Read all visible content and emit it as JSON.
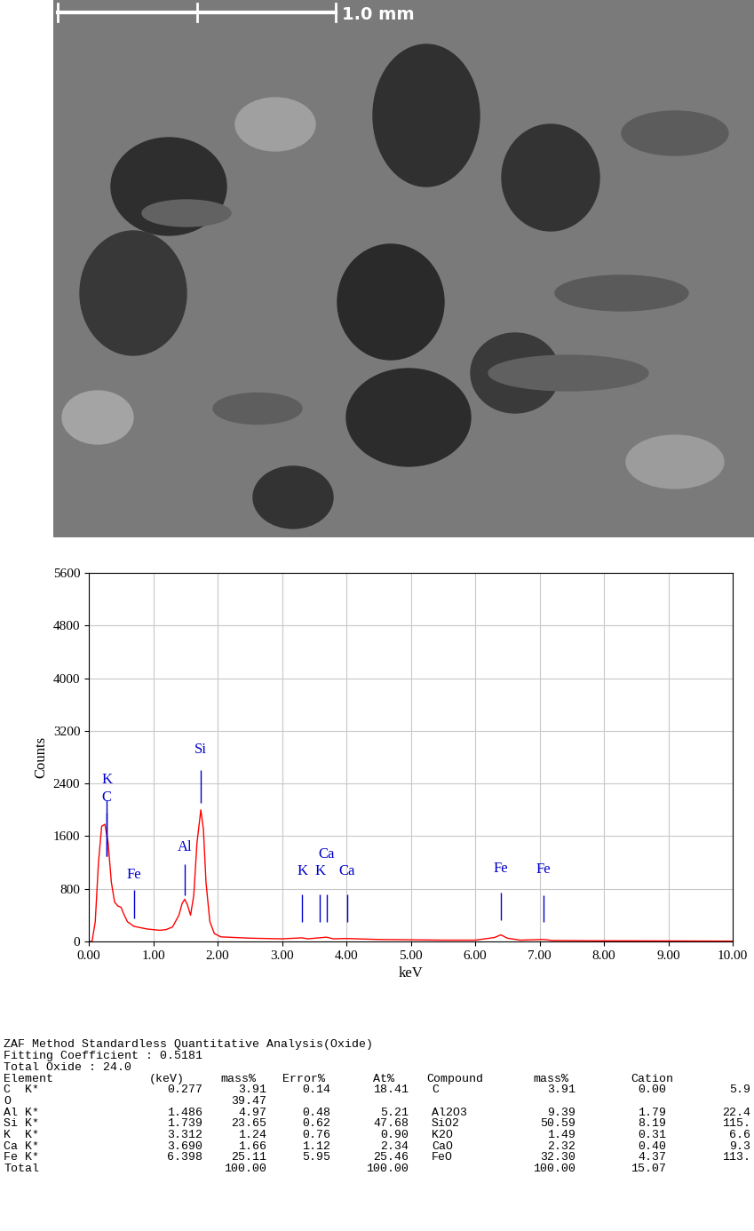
{
  "micrograph": {
    "scale_bar": "1.0 mm"
  },
  "chart_data": {
    "type": "line",
    "xlabel": "keV",
    "ylabel": "Counts",
    "xlim": [
      0,
      10
    ],
    "xticks": [
      {
        "value": 0,
        "label": "0.00"
      },
      {
        "value": 1,
        "label": "1.00"
      },
      {
        "value": 2,
        "label": "2.00"
      },
      {
        "value": 3,
        "label": "3.00"
      },
      {
        "value": 4,
        "label": "4.00"
      },
      {
        "value": 5,
        "label": "5.00"
      },
      {
        "value": 6,
        "label": "6.00"
      },
      {
        "value": 7,
        "label": "7.00"
      },
      {
        "value": 8,
        "label": "8.00"
      },
      {
        "value": 9,
        "label": "9.00"
      },
      {
        "value": 10,
        "label": "10.00"
      }
    ],
    "ylim": [
      0,
      5600
    ],
    "yticks": [
      0,
      800,
      1600,
      2400,
      3200,
      4000,
      4800,
      5600
    ],
    "grid": true,
    "color": "#ff0000",
    "x": [
      0.0,
      0.05,
      0.1,
      0.15,
      0.2,
      0.25,
      0.3,
      0.35,
      0.4,
      0.45,
      0.5,
      0.55,
      0.6,
      0.7,
      0.8,
      0.9,
      1.0,
      1.1,
      1.2,
      1.3,
      1.4,
      1.45,
      1.49,
      1.53,
      1.58,
      1.63,
      1.68,
      1.74,
      1.78,
      1.82,
      1.88,
      1.95,
      2.05,
      2.5,
      3.0,
      3.31,
      3.4,
      3.69,
      3.8,
      4.0,
      4.5,
      5.0,
      5.5,
      6.0,
      6.3,
      6.4,
      6.5,
      6.7,
      7.06,
      7.2,
      8.0,
      9.0,
      10.0
    ],
    "values": [
      0,
      0,
      300,
      1200,
      1750,
      1780,
      1500,
      900,
      600,
      540,
      520,
      400,
      300,
      230,
      210,
      190,
      180,
      170,
      180,
      220,
      400,
      580,
      640,
      560,
      400,
      700,
      1500,
      2000,
      1700,
      900,
      300,
      120,
      70,
      50,
      40,
      55,
      40,
      65,
      40,
      45,
      30,
      25,
      20,
      20,
      60,
      100,
      50,
      20,
      30,
      15,
      10,
      8,
      5
    ],
    "peak_markers": {
      "color": "#0000cc",
      "items": [
        {
          "label": "K",
          "x": 0.277,
          "text_y": 2350,
          "line": [
            1300,
            2150
          ]
        },
        {
          "label": "C",
          "x": 0.277,
          "text_y": 2080,
          "line": [
            1300,
            1950
          ]
        },
        {
          "label": "Fe",
          "x": 0.705,
          "text_y": 900,
          "line": [
            350,
            780
          ]
        },
        {
          "label": "Al",
          "x": 1.486,
          "text_y": 1320,
          "line": [
            700,
            1180
          ]
        },
        {
          "label": "Si",
          "x": 1.739,
          "text_y": 2800,
          "line": [
            2100,
            2600
          ]
        },
        {
          "label": "K",
          "x": 3.312,
          "text_y": 960,
          "line": [
            300,
            720
          ]
        },
        {
          "label": "K",
          "x": 3.59,
          "text_y": 960,
          "line": [
            300,
            720
          ]
        },
        {
          "label": "Ca",
          "x": 3.69,
          "text_y": 1220,
          "line": [
            300,
            720
          ]
        },
        {
          "label": "Ca",
          "x": 4.01,
          "text_y": 960,
          "line": [
            300,
            720
          ]
        },
        {
          "label": "Fe",
          "x": 6.398,
          "text_y": 1000,
          "line": [
            330,
            740
          ]
        },
        {
          "label": "Fe",
          "x": 7.06,
          "text_y": 980,
          "line": [
            300,
            700
          ]
        }
      ]
    }
  },
  "table": {
    "lines": [
      "ZAF Method Standardless Quantitative Analysis(Oxide)",
      "Fitting Coefficient : 0.5181",
      "Total Oxide : 24.0"
    ],
    "header": [
      "Element",
      "(keV)",
      "mass%",
      "Error%",
      "At%",
      "Compound",
      "mass%",
      "Cation"
    ],
    "rows": [
      [
        "C  K*",
        "0.277",
        "3.91",
        "0.14",
        "18.41",
        "C",
        "3.91",
        "0.00",
        "5.9"
      ],
      [
        "O",
        null,
        "39.47",
        null,
        null,
        null,
        null,
        null,
        null
      ],
      [
        "Al K*",
        "1.486",
        "4.97",
        "0.48",
        "5.21",
        "Al2O3",
        "9.39",
        "1.79",
        "22.4"
      ],
      [
        "Si K*",
        "1.739",
        "23.65",
        "0.62",
        "47.68",
        "SiO2",
        "50.59",
        "8.19",
        "115."
      ],
      [
        "K  K*",
        "3.312",
        "1.24",
        "0.76",
        "0.90",
        "K2O",
        "1.49",
        "0.31",
        "6.6"
      ],
      [
        "Ca K*",
        "3.690",
        "1.66",
        "1.12",
        "2.34",
        "CaO",
        "2.32",
        "0.40",
        "9.3"
      ],
      [
        "Fe K*",
        "6.398",
        "25.11",
        "5.95",
        "25.46",
        "FeO",
        "32.30",
        "4.37",
        "113."
      ],
      [
        "Total",
        null,
        "100.00",
        null,
        "100.00",
        null,
        "100.00",
        "15.07",
        null
      ]
    ]
  }
}
